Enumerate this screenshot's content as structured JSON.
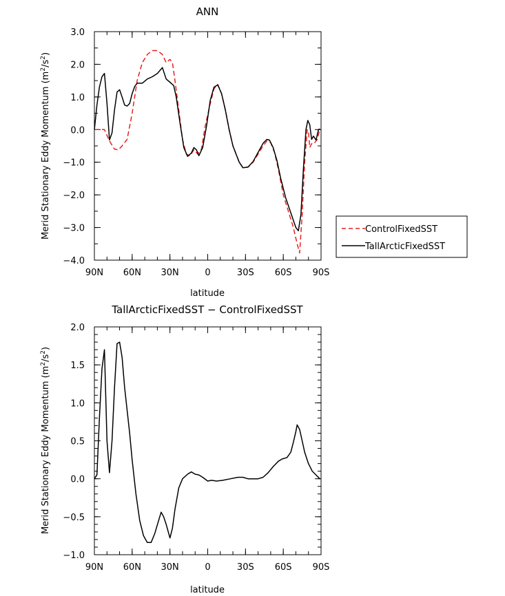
{
  "chart_data": [
    {
      "type": "line",
      "title": "ANN",
      "xlabel": "latitude",
      "ylabel": "Merid Stationary Eddy Momentum (m²/s²)",
      "ylim": [
        -4.0,
        3.0
      ],
      "yticks": [
        3.0,
        2.0,
        1.0,
        0.0,
        -1.0,
        -2.0,
        -3.0,
        -4.0
      ],
      "ytick_labels": [
        "3.0",
        "2.0",
        "1.0",
        "0.0",
        "−1.0",
        "−2.0",
        "−3.0",
        "−4.0"
      ],
      "xticks": [
        90,
        60,
        30,
        0,
        -30,
        -60,
        -90
      ],
      "xtick_labels": [
        "90N",
        "60N",
        "30N",
        "0",
        "30S",
        "60S",
        "90S"
      ],
      "legend_position": "right",
      "series": [
        {
          "name": "ControlFixedSST",
          "color": "#e8201e",
          "style": "dashed",
          "points": [
            [
              90,
              0.0
            ],
            [
              85,
              0.0
            ],
            [
              82,
              0.0
            ],
            [
              78,
              -0.35
            ],
            [
              74,
              -0.6
            ],
            [
              71,
              -0.62
            ],
            [
              68,
              -0.5
            ],
            [
              64,
              -0.3
            ],
            [
              60,
              0.5
            ],
            [
              56,
              1.5
            ],
            [
              52,
              2.05
            ],
            [
              48,
              2.3
            ],
            [
              44,
              2.42
            ],
            [
              40,
              2.42
            ],
            [
              36,
              2.3
            ],
            [
              33,
              2.05
            ],
            [
              30,
              2.15
            ],
            [
              28,
              2.05
            ],
            [
              26,
              1.5
            ],
            [
              23,
              0.6
            ],
            [
              20,
              -0.3
            ],
            [
              17,
              -0.75
            ],
            [
              14,
              -0.8
            ],
            [
              11,
              -0.62
            ],
            [
              8,
              -0.75
            ],
            [
              5,
              -0.6
            ],
            [
              2,
              0.1
            ],
            [
              -2,
              0.8
            ],
            [
              -5,
              1.25
            ],
            [
              -8,
              1.38
            ],
            [
              -11,
              1.1
            ],
            [
              -14,
              0.6
            ],
            [
              -17,
              0.0
            ],
            [
              -20,
              -0.5
            ],
            [
              -25,
              -1.0
            ],
            [
              -28,
              -1.17
            ],
            [
              -32,
              -1.15
            ],
            [
              -36,
              -1.0
            ],
            [
              -40,
              -0.75
            ],
            [
              -44,
              -0.5
            ],
            [
              -47,
              -0.35
            ],
            [
              -50,
              -0.4
            ],
            [
              -53,
              -0.7
            ],
            [
              -56,
              -1.2
            ],
            [
              -60,
              -2.0
            ],
            [
              -64,
              -2.5
            ],
            [
              -68,
              -3.0
            ],
            [
              -71,
              -3.5
            ],
            [
              -73,
              -3.78
            ],
            [
              -75,
              -2.6
            ],
            [
              -77,
              -1.0
            ],
            [
              -79,
              0.0
            ],
            [
              -80,
              -0.05
            ],
            [
              -81,
              -0.55
            ],
            [
              -83,
              -0.4
            ],
            [
              -85,
              -0.4
            ],
            [
              -87,
              -0.3
            ],
            [
              -89,
              0.0
            ]
          ]
        },
        {
          "name": "TallArcticFixedSST",
          "color": "#000000",
          "style": "solid",
          "points": [
            [
              90,
              0.0
            ],
            [
              88,
              0.75
            ],
            [
              86,
              1.3
            ],
            [
              84,
              1.62
            ],
            [
              82,
              1.72
            ],
            [
              80,
              0.8
            ],
            [
              78,
              -0.32
            ],
            [
              76,
              -0.1
            ],
            [
              74,
              0.6
            ],
            [
              72,
              1.15
            ],
            [
              70,
              1.22
            ],
            [
              68,
              1.0
            ],
            [
              66,
              0.75
            ],
            [
              64,
              0.72
            ],
            [
              62,
              0.8
            ],
            [
              60,
              1.1
            ],
            [
              58,
              1.32
            ],
            [
              56,
              1.42
            ],
            [
              52,
              1.42
            ],
            [
              48,
              1.55
            ],
            [
              44,
              1.62
            ],
            [
              40,
              1.72
            ],
            [
              36,
              1.9
            ],
            [
              33,
              1.55
            ],
            [
              30,
              1.45
            ],
            [
              27,
              1.35
            ],
            [
              25,
              1.0
            ],
            [
              22,
              0.2
            ],
            [
              19,
              -0.55
            ],
            [
              16,
              -0.82
            ],
            [
              13,
              -0.72
            ],
            [
              11,
              -0.55
            ],
            [
              9,
              -0.62
            ],
            [
              7,
              -0.8
            ],
            [
              4,
              -0.55
            ],
            [
              1,
              0.1
            ],
            [
              -2,
              0.9
            ],
            [
              -5,
              1.3
            ],
            [
              -8,
              1.37
            ],
            [
              -11,
              1.1
            ],
            [
              -14,
              0.6
            ],
            [
              -17,
              0.0
            ],
            [
              -20,
              -0.5
            ],
            [
              -25,
              -1.0
            ],
            [
              -28,
              -1.17
            ],
            [
              -32,
              -1.15
            ],
            [
              -36,
              -0.98
            ],
            [
              -40,
              -0.7
            ],
            [
              -44,
              -0.42
            ],
            [
              -47,
              -0.3
            ],
            [
              -49,
              -0.32
            ],
            [
              -52,
              -0.55
            ],
            [
              -55,
              -0.95
            ],
            [
              -58,
              -1.5
            ],
            [
              -62,
              -2.1
            ],
            [
              -66,
              -2.55
            ],
            [
              -70,
              -3.0
            ],
            [
              -72,
              -3.1
            ],
            [
              -74,
              -2.6
            ],
            [
              -76,
              -1.2
            ],
            [
              -78,
              0.0
            ],
            [
              -79.5,
              0.28
            ],
            [
              -81,
              0.15
            ],
            [
              -82.5,
              -0.3
            ],
            [
              -84,
              -0.2
            ],
            [
              -86,
              -0.32
            ],
            [
              -88,
              0.0
            ],
            [
              -89,
              0.02
            ]
          ]
        }
      ]
    },
    {
      "type": "line",
      "title": "TallArcticFixedSST − ControlFixedSST",
      "xlabel": "latitude",
      "ylabel": "Merid Stationary Eddy Momentum (m²/s²)",
      "ylim": [
        -1.0,
        2.0
      ],
      "yticks": [
        2.0,
        1.5,
        1.0,
        0.5,
        0.0,
        -0.5,
        -1.0
      ],
      "ytick_labels": [
        "2.0",
        "1.5",
        "1.0",
        "0.5",
        "0.0",
        "−0.5",
        "−1.0"
      ],
      "xticks": [
        90,
        60,
        30,
        0,
        -30,
        -60,
        -90
      ],
      "xtick_labels": [
        "90N",
        "60N",
        "30N",
        "0",
        "30S",
        "60S",
        "90S"
      ],
      "series": [
        {
          "color": "#000000",
          "style": "solid",
          "points": [
            [
              90,
              0.0
            ],
            [
              88,
              0.05
            ],
            [
              86,
              0.8
            ],
            [
              84,
              1.45
            ],
            [
              82,
              1.7
            ],
            [
              80,
              0.5
            ],
            [
              78,
              0.08
            ],
            [
              76,
              0.5
            ],
            [
              74,
              1.2
            ],
            [
              72,
              1.78
            ],
            [
              70,
              1.8
            ],
            [
              68,
              1.6
            ],
            [
              66,
              1.2
            ],
            [
              62,
              0.6
            ],
            [
              60,
              0.25
            ],
            [
              57,
              -0.2
            ],
            [
              54,
              -0.55
            ],
            [
              51,
              -0.75
            ],
            [
              48,
              -0.84
            ],
            [
              45,
              -0.84
            ],
            [
              42,
              -0.72
            ],
            [
              39,
              -0.55
            ],
            [
              37,
              -0.44
            ],
            [
              35,
              -0.5
            ],
            [
              33,
              -0.6
            ],
            [
              30,
              -0.78
            ],
            [
              28,
              -0.65
            ],
            [
              26,
              -0.4
            ],
            [
              23,
              -0.12
            ],
            [
              20,
              0.0
            ],
            [
              16,
              0.06
            ],
            [
              13,
              0.09
            ],
            [
              10,
              0.06
            ],
            [
              7,
              0.05
            ],
            [
              4,
              0.02
            ],
            [
              0,
              -0.03
            ],
            [
              -3,
              -0.02
            ],
            [
              -7,
              -0.03
            ],
            [
              -12,
              -0.02
            ],
            [
              -18,
              0.0
            ],
            [
              -24,
              0.02
            ],
            [
              -28,
              0.02
            ],
            [
              -32,
              0.0
            ],
            [
              -36,
              0.0
            ],
            [
              -40,
              0.0
            ],
            [
              -44,
              0.02
            ],
            [
              -48,
              0.08
            ],
            [
              -52,
              0.16
            ],
            [
              -56,
              0.23
            ],
            [
              -59,
              0.26
            ],
            [
              -63,
              0.28
            ],
            [
              -66,
              0.35
            ],
            [
              -68,
              0.48
            ],
            [
              -70,
              0.62
            ],
            [
              -71,
              0.71
            ],
            [
              -73,
              0.65
            ],
            [
              -75,
              0.5
            ],
            [
              -77,
              0.35
            ],
            [
              -80,
              0.2
            ],
            [
              -83,
              0.1
            ],
            [
              -86,
              0.05
            ],
            [
              -89,
              0.0
            ]
          ]
        }
      ]
    }
  ]
}
